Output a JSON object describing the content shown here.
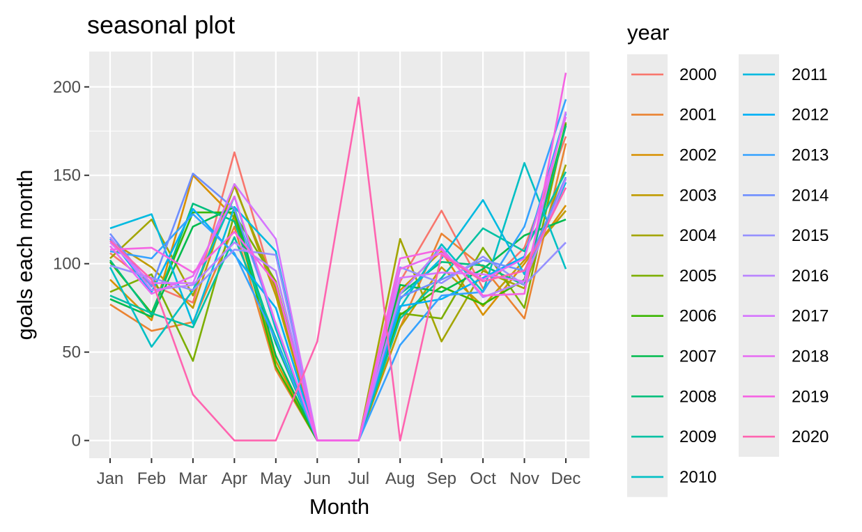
{
  "chart_data": {
    "type": "line",
    "title": "seasonal plot",
    "xlabel": "Month",
    "ylabel": "goals each month",
    "categories": [
      "Jan",
      "Feb",
      "Mar",
      "Apr",
      "May",
      "Jun",
      "Jul",
      "Aug",
      "Sep",
      "Oct",
      "Nov",
      "Dec"
    ],
    "yticks": [
      0,
      50,
      100,
      150,
      200
    ],
    "ylim": [
      -10,
      220
    ],
    "grid": true,
    "legend": {
      "title": "year",
      "position": "right"
    },
    "series": [
      {
        "name": "2000",
        "color": "#F8766D",
        "values": [
          106,
          88,
          78,
          163,
          83,
          0,
          0,
          90,
          130,
          86,
          109,
          172
        ]
      },
      {
        "name": "2001",
        "color": "#EA8331",
        "values": [
          77,
          62,
          67,
          121,
          40,
          0,
          0,
          64,
          117,
          98,
          69,
          168
        ]
      },
      {
        "name": "2002",
        "color": "#D89000",
        "values": [
          91,
          68,
          150,
          126,
          45,
          0,
          0,
          85,
          107,
          71,
          100,
          133
        ]
      },
      {
        "name": "2003",
        "color": "#C09B00",
        "values": [
          113,
          98,
          75,
          145,
          82,
          0,
          0,
          64,
          98,
          76,
          102,
          130
        ]
      },
      {
        "name": "2004",
        "color": "#A3A500",
        "values": [
          103,
          125,
          82,
          144,
          86,
          0,
          0,
          114,
          56,
          96,
          86,
          156
        ]
      },
      {
        "name": "2005",
        "color": "#7CAE00",
        "values": [
          84,
          94,
          45,
          128,
          90,
          0,
          0,
          72,
          69,
          109,
          75,
          180
        ]
      },
      {
        "name": "2006",
        "color": "#39B600",
        "values": [
          101,
          72,
          129,
          129,
          42,
          0,
          0,
          71,
          87,
          77,
          91,
          179
        ]
      },
      {
        "name": "2007",
        "color": "#00BB4E",
        "values": [
          80,
          70,
          121,
          132,
          48,
          0,
          0,
          88,
          84,
          97,
          116,
          125
        ]
      },
      {
        "name": "2008",
        "color": "#00BF7D",
        "values": [
          102,
          71,
          134,
          124,
          55,
          0,
          0,
          83,
          101,
          99,
          88,
          178
        ]
      },
      {
        "name": "2009",
        "color": "#00C1A3",
        "values": [
          82,
          72,
          64,
          115,
          58,
          0,
          0,
          69,
          92,
          120,
          107,
          152
        ]
      },
      {
        "name": "2010",
        "color": "#00BFC4",
        "values": [
          98,
          53,
          85,
          138,
          63,
          0,
          0,
          75,
          111,
          84,
          157,
          97
        ]
      },
      {
        "name": "2011",
        "color": "#00BAE0",
        "values": [
          120,
          128,
          66,
          132,
          107,
          0,
          0,
          80,
          103,
          136,
          94,
          146
        ]
      },
      {
        "name": "2012",
        "color": "#00B0F6",
        "values": [
          114,
          84,
          131,
          105,
          75,
          0,
          0,
          76,
          80,
          92,
          104,
          185
        ]
      },
      {
        "name": "2013",
        "color": "#35A2FF",
        "values": [
          107,
          103,
          128,
          106,
          57,
          0,
          0,
          54,
          82,
          84,
          121,
          193
        ]
      },
      {
        "name": "2014",
        "color": "#6E8EFF",
        "values": [
          117,
          87,
          151,
          131,
          66,
          0,
          0,
          81,
          91,
          102,
          96,
          149
        ]
      },
      {
        "name": "2015",
        "color": "#9590FF",
        "values": [
          99,
          92,
          85,
          108,
          105,
          0,
          0,
          98,
          89,
          104,
          88,
          112
        ]
      },
      {
        "name": "2016",
        "color": "#B983FF",
        "values": [
          115,
          85,
          88,
          112,
          96,
          0,
          0,
          83,
          109,
          81,
          90,
          148
        ]
      },
      {
        "name": "2017",
        "color": "#D575FE",
        "values": [
          112,
          89,
          89,
          145,
          114,
          0,
          0,
          92,
          95,
          94,
          90,
          186
        ]
      },
      {
        "name": "2018",
        "color": "#E76BF3",
        "values": [
          110,
          83,
          93,
          138,
          66,
          0,
          0,
          97,
          106,
          91,
          103,
          183
        ]
      },
      {
        "name": "2019",
        "color": "#F564E3",
        "values": [
          108,
          109,
          95,
          118,
          89,
          0,
          0,
          103,
          108,
          82,
          83,
          208
        ]
      },
      {
        "name": "2020",
        "color": "#FF64B0",
        "values": [
          113,
          91,
          26,
          0,
          0,
          56,
          194,
          0,
          105,
          90,
          96,
          143
        ]
      }
    ]
  }
}
